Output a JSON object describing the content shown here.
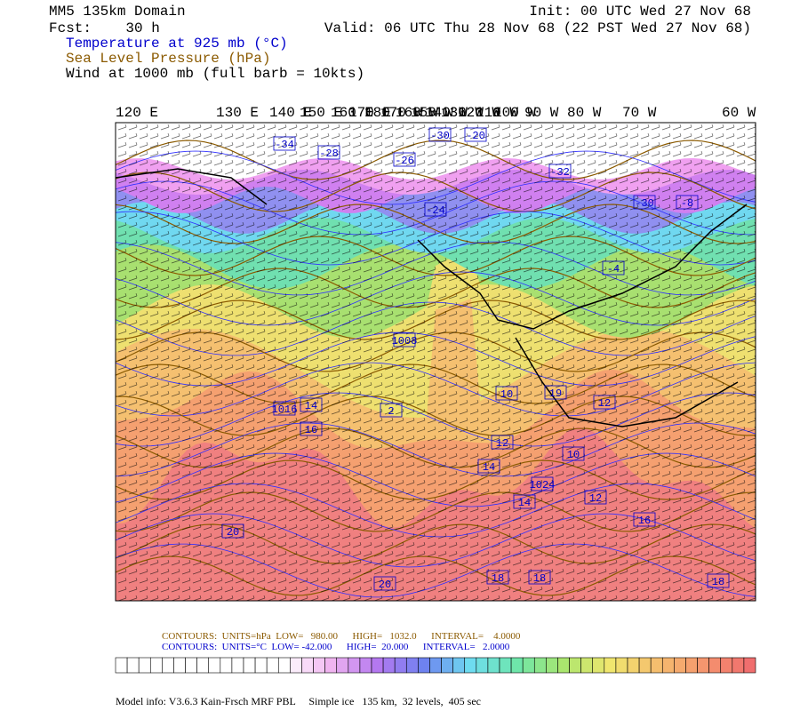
{
  "header": {
    "domain": "MM5 135km Domain",
    "forecast": "Fcst:    30 h",
    "init": "Init: 00 UTC Wed 27 Nov 68",
    "valid": "Valid: 06 UTC Thu 28 Nov 68 (22 PST Wed 27 Nov 68)",
    "fields": [
      "Temperature at 925 mb (°C)",
      "Sea Level Pressure (hPa)",
      "Wind at 1000 mb (full barb = 10kts)"
    ]
  },
  "longitude_labels": [
    "120 E",
    "130 E",
    "140 E",
    "150 E",
    "160 E",
    "170 E",
    "180",
    "170 W",
    "160 W",
    "150 W",
    "140 W",
    "130 W",
    "120 W",
    "110 W",
    "100 W",
    "90 W",
    "80 W",
    "70 W",
    "60 W"
  ],
  "map_labels": [
    "-34",
    "-28",
    "-30",
    "-20",
    "-26",
    "-32",
    "-24",
    "-30",
    "-8",
    "-4",
    "1008",
    "2",
    "14",
    "16",
    "10",
    "12",
    "19",
    "14",
    "12",
    "10",
    "12",
    "14",
    "16",
    "20",
    "18",
    "18",
    "20",
    "18",
    "1024",
    "1016"
  ],
  "contour_info": [
    "CONTOURS:  UNITS=hPa  LOW=   980.00      HIGH=   1032.0      INTERVAL=    4.0000",
    "CONTOURS:  UNITS=°C  LOW= -42.000      HIGH=  20.000      INTERVAL=   2.0000"
  ],
  "model_info": "Model info: V3.6.3 Kain-Frsch MRF PBL     Simple ice   135 km,  32 levels,  405 sec"
}
